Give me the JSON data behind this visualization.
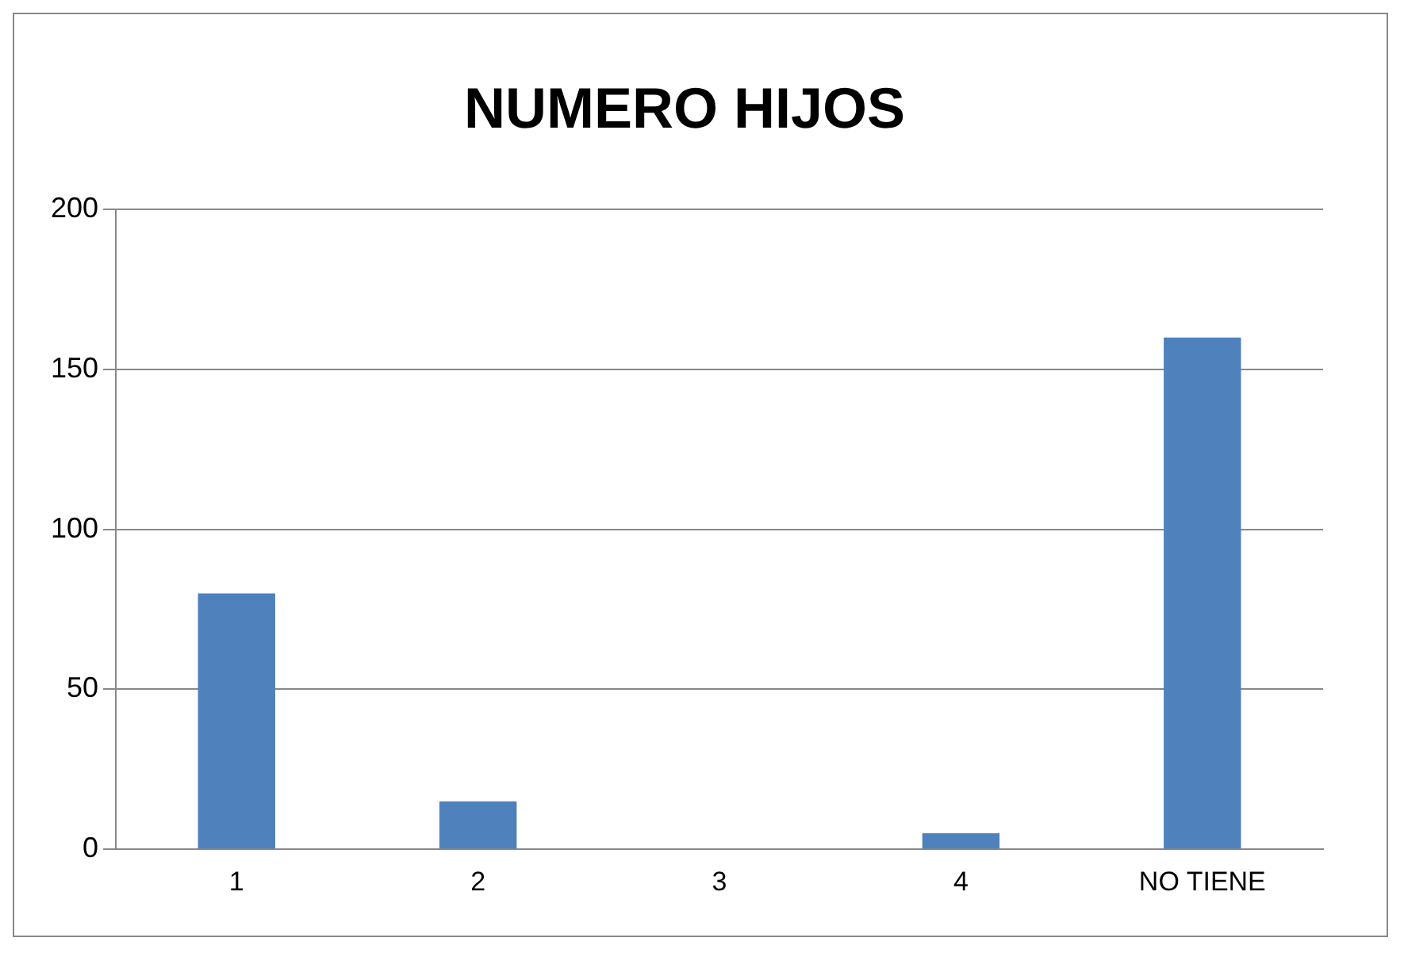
{
  "chart_data": {
    "type": "bar",
    "title": "NUMERO HIJOS",
    "categories": [
      "1",
      "2",
      "3",
      "4",
      "NO TIENE"
    ],
    "values": [
      80,
      15,
      0,
      5,
      160
    ],
    "color": "#4f81bd",
    "ylim": [
      0,
      200
    ],
    "yticks": [
      0,
      50,
      100,
      150,
      200
    ],
    "grid": "y"
  }
}
